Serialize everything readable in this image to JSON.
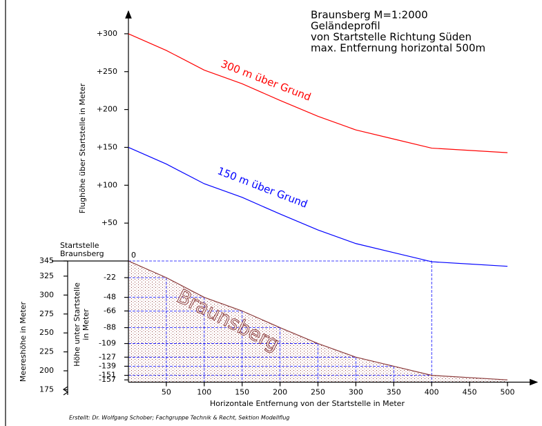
{
  "chart_data": {
    "type": "line",
    "title_lines": [
      "Braunsberg  M=1:2000",
      "Geländeprofil",
      "von Startstelle Richtung Süden",
      "max. Entfernung horizontal 500m"
    ],
    "y_label": "Flughöhe über Startstelle in Meter",
    "y2_label": "Meereshöhe in Meter",
    "depth_label_lines": [
      "Höhe unter Startstelle",
      "in Meter"
    ],
    "x_label": "Horizontale Entfernung von der Startstelle in Meter",
    "start_label_lines": [
      "Startstelle",
      "Braunsberg"
    ],
    "credit": "Erstellt: Dr. Wolfgang Schober; Fachgruppe Technik & Recht, Sektion Modellflug",
    "x": [
      0,
      50,
      100,
      150,
      200,
      250,
      300,
      350,
      400,
      500
    ],
    "series": [
      {
        "name": "300 m über Grund",
        "color": "#ff0000",
        "values": [
          300,
          278,
          252,
          234,
          212,
          191,
          173,
          161,
          149,
          143
        ]
      },
      {
        "name": "150 m über Grund",
        "color": "#0000ff",
        "values": [
          150,
          128,
          102,
          84,
          62,
          41,
          23,
          11,
          -1,
          -7
        ]
      }
    ],
    "terrain": {
      "name": "Braunsberg",
      "color": "#8b3a3a",
      "values": [
        0,
        -22,
        -48,
        -66,
        -88,
        -109,
        -127,
        -139,
        -151,
        -157
      ]
    },
    "xlim": [
      0,
      500
    ],
    "xticks": [
      0,
      50,
      100,
      150,
      200,
      250,
      300,
      350,
      400,
      450,
      500
    ],
    "ylim": [
      -160,
      330
    ],
    "yticks": [
      {
        "value": 50,
        "label": "+50"
      },
      {
        "value": 100,
        "label": "+100"
      },
      {
        "value": 150,
        "label": "+150"
      },
      {
        "value": 200,
        "label": "+200"
      },
      {
        "value": 250,
        "label": "+250"
      },
      {
        "value": 300,
        "label": "+300"
      }
    ],
    "y2lim": [
      185,
      675
    ],
    "y2ticks": [
      175,
      200,
      225,
      250,
      275,
      300,
      325,
      345
    ],
    "depth_ticks": [
      -22,
      -48,
      -66,
      -88,
      -109,
      -127,
      -139,
      -151,
      -157
    ],
    "grid_color": "#0000ff"
  }
}
